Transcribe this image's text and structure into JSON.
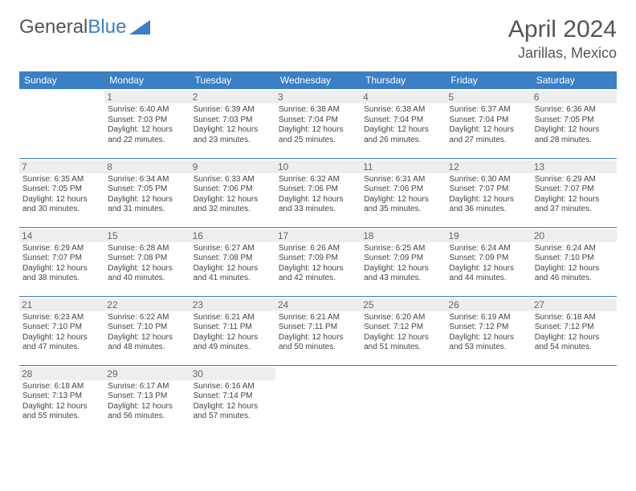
{
  "brand": {
    "part1": "General",
    "part2": "Blue"
  },
  "title": "April 2024",
  "location": "Jarillas, Mexico",
  "colors": {
    "header_bg": "#3b7fc4",
    "header_text": "#ffffff",
    "daynum_bg": "#eeeeee",
    "border": "#3b7fc4",
    "body_text": "#444444",
    "title_text": "#555555"
  },
  "weekdays": [
    "Sunday",
    "Monday",
    "Tuesday",
    "Wednesday",
    "Thursday",
    "Friday",
    "Saturday"
  ],
  "weeks": [
    [
      {
        "n": "",
        "info": ""
      },
      {
        "n": "1",
        "info": "Sunrise: 6:40 AM\nSunset: 7:03 PM\nDaylight: 12 hours and 22 minutes."
      },
      {
        "n": "2",
        "info": "Sunrise: 6:39 AM\nSunset: 7:03 PM\nDaylight: 12 hours and 23 minutes."
      },
      {
        "n": "3",
        "info": "Sunrise: 6:38 AM\nSunset: 7:04 PM\nDaylight: 12 hours and 25 minutes."
      },
      {
        "n": "4",
        "info": "Sunrise: 6:38 AM\nSunset: 7:04 PM\nDaylight: 12 hours and 26 minutes."
      },
      {
        "n": "5",
        "info": "Sunrise: 6:37 AM\nSunset: 7:04 PM\nDaylight: 12 hours and 27 minutes."
      },
      {
        "n": "6",
        "info": "Sunrise: 6:36 AM\nSunset: 7:05 PM\nDaylight: 12 hours and 28 minutes."
      }
    ],
    [
      {
        "n": "7",
        "info": "Sunrise: 6:35 AM\nSunset: 7:05 PM\nDaylight: 12 hours and 30 minutes."
      },
      {
        "n": "8",
        "info": "Sunrise: 6:34 AM\nSunset: 7:05 PM\nDaylight: 12 hours and 31 minutes."
      },
      {
        "n": "9",
        "info": "Sunrise: 6:33 AM\nSunset: 7:06 PM\nDaylight: 12 hours and 32 minutes."
      },
      {
        "n": "10",
        "info": "Sunrise: 6:32 AM\nSunset: 7:06 PM\nDaylight: 12 hours and 33 minutes."
      },
      {
        "n": "11",
        "info": "Sunrise: 6:31 AM\nSunset: 7:06 PM\nDaylight: 12 hours and 35 minutes."
      },
      {
        "n": "12",
        "info": "Sunrise: 6:30 AM\nSunset: 7:07 PM\nDaylight: 12 hours and 36 minutes."
      },
      {
        "n": "13",
        "info": "Sunrise: 6:29 AM\nSunset: 7:07 PM\nDaylight: 12 hours and 37 minutes."
      }
    ],
    [
      {
        "n": "14",
        "info": "Sunrise: 6:29 AM\nSunset: 7:07 PM\nDaylight: 12 hours and 38 minutes."
      },
      {
        "n": "15",
        "info": "Sunrise: 6:28 AM\nSunset: 7:08 PM\nDaylight: 12 hours and 40 minutes."
      },
      {
        "n": "16",
        "info": "Sunrise: 6:27 AM\nSunset: 7:08 PM\nDaylight: 12 hours and 41 minutes."
      },
      {
        "n": "17",
        "info": "Sunrise: 6:26 AM\nSunset: 7:09 PM\nDaylight: 12 hours and 42 minutes."
      },
      {
        "n": "18",
        "info": "Sunrise: 6:25 AM\nSunset: 7:09 PM\nDaylight: 12 hours and 43 minutes."
      },
      {
        "n": "19",
        "info": "Sunrise: 6:24 AM\nSunset: 7:09 PM\nDaylight: 12 hours and 44 minutes."
      },
      {
        "n": "20",
        "info": "Sunrise: 6:24 AM\nSunset: 7:10 PM\nDaylight: 12 hours and 46 minutes."
      }
    ],
    [
      {
        "n": "21",
        "info": "Sunrise: 6:23 AM\nSunset: 7:10 PM\nDaylight: 12 hours and 47 minutes."
      },
      {
        "n": "22",
        "info": "Sunrise: 6:22 AM\nSunset: 7:10 PM\nDaylight: 12 hours and 48 minutes."
      },
      {
        "n": "23",
        "info": "Sunrise: 6:21 AM\nSunset: 7:11 PM\nDaylight: 12 hours and 49 minutes."
      },
      {
        "n": "24",
        "info": "Sunrise: 6:21 AM\nSunset: 7:11 PM\nDaylight: 12 hours and 50 minutes."
      },
      {
        "n": "25",
        "info": "Sunrise: 6:20 AM\nSunset: 7:12 PM\nDaylight: 12 hours and 51 minutes."
      },
      {
        "n": "26",
        "info": "Sunrise: 6:19 AM\nSunset: 7:12 PM\nDaylight: 12 hours and 53 minutes."
      },
      {
        "n": "27",
        "info": "Sunrise: 6:18 AM\nSunset: 7:12 PM\nDaylight: 12 hours and 54 minutes."
      }
    ],
    [
      {
        "n": "28",
        "info": "Sunrise: 6:18 AM\nSunset: 7:13 PM\nDaylight: 12 hours and 55 minutes."
      },
      {
        "n": "29",
        "info": "Sunrise: 6:17 AM\nSunset: 7:13 PM\nDaylight: 12 hours and 56 minutes."
      },
      {
        "n": "30",
        "info": "Sunrise: 6:16 AM\nSunset: 7:14 PM\nDaylight: 12 hours and 57 minutes."
      },
      {
        "n": "",
        "info": ""
      },
      {
        "n": "",
        "info": ""
      },
      {
        "n": "",
        "info": ""
      },
      {
        "n": "",
        "info": ""
      }
    ]
  ]
}
